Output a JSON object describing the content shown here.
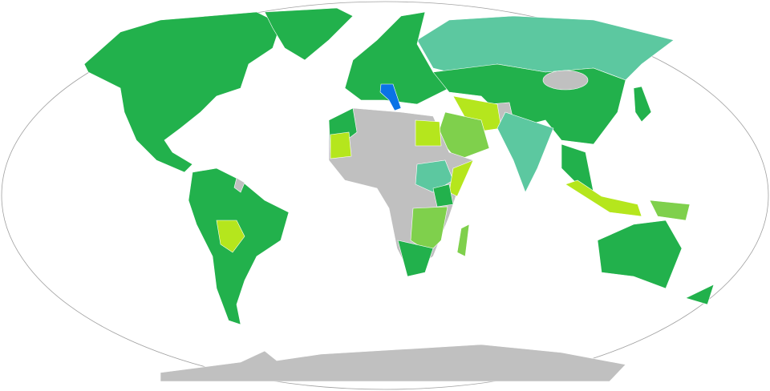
{
  "map": {
    "ocean_color": "#ffffff",
    "outline_color": "#a0a0a0",
    "colors": {
      "home": "#0a73e6",
      "visa_free": "#22b14c",
      "evisa_or_free": "#5cc8a0",
      "visa_on_arrival": "#7fd04c",
      "evisa": "#b5e61d",
      "visa_required": "#c0c0c0"
    }
  }
}
